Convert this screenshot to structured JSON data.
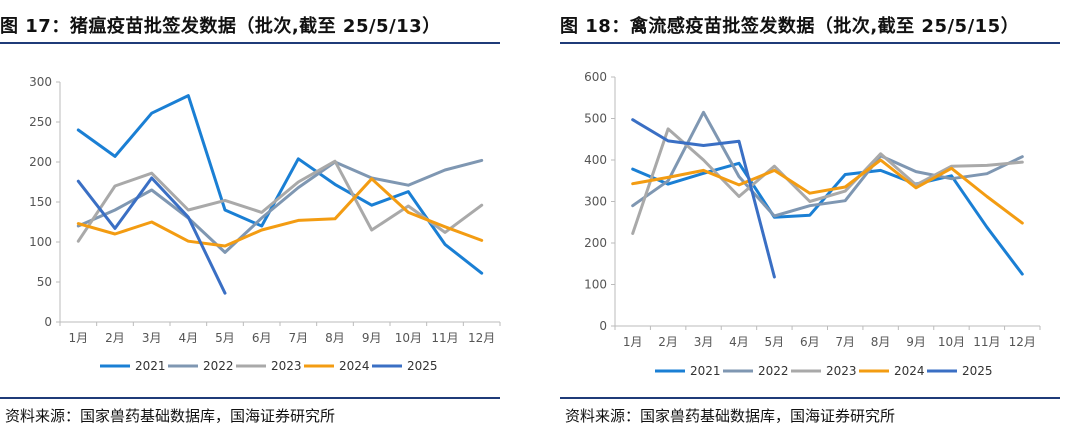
{
  "charts": [
    {
      "title": "图 17：猪瘟疫苗批签发数据（批次,截至 25/5/13）",
      "source": "资料来源：国家兽药基础数据库，国海证券研究所"
    },
    {
      "title": "图 18：禽流感疫苗批签发数据（批次,截至 25/5/15）",
      "source": "资料来源：国家兽药基础数据库，国海证券研究所"
    }
  ],
  "chart_data": [
    {
      "type": "line",
      "categories": [
        "1月",
        "2月",
        "3月",
        "4月",
        "5月",
        "6月",
        "7月",
        "8月",
        "9月",
        "10月",
        "11月",
        "12月"
      ],
      "ylim": [
        0,
        300
      ],
      "yticks": [
        0,
        50,
        100,
        150,
        200,
        250,
        300
      ],
      "grid": false,
      "legend_position": "bottom",
      "series": [
        {
          "name": "2021",
          "color": "#1a7fd4",
          "values": [
            240,
            207,
            261,
            283,
            140,
            120,
            204,
            172,
            146,
            163,
            97,
            61
          ]
        },
        {
          "name": "2022",
          "color": "#7f97b2",
          "values": [
            120,
            140,
            165,
            130,
            87,
            130,
            168,
            200,
            180,
            171,
            190,
            202
          ]
        },
        {
          "name": "2023",
          "color": "#a9a9a9",
          "values": [
            101,
            170,
            186,
            140,
            152,
            137,
            175,
            201,
            115,
            145,
            112,
            146
          ]
        },
        {
          "name": "2024",
          "color": "#f39c12",
          "values": [
            123,
            110,
            125,
            101,
            95,
            115,
            127,
            129,
            179,
            137,
            119,
            102
          ]
        },
        {
          "name": "2025",
          "color": "#3a6fc4",
          "values": [
            176,
            117,
            180,
            131,
            36,
            null,
            null,
            null,
            null,
            null,
            null,
            null
          ]
        }
      ]
    },
    {
      "type": "line",
      "categories": [
        "1月",
        "2月",
        "3月",
        "4月",
        "5月",
        "6月",
        "7月",
        "8月",
        "9月",
        "10月",
        "11月",
        "12月"
      ],
      "ylim": [
        0,
        600
      ],
      "yticks": [
        0,
        100,
        200,
        300,
        400,
        500,
        600
      ],
      "grid": false,
      "legend_position": "bottom",
      "series": [
        {
          "name": "2021",
          "color": "#1a7fd4",
          "values": [
            378,
            342,
            368,
            392,
            262,
            267,
            365,
            375,
            342,
            362,
            238,
            125
          ]
        },
        {
          "name": "2022",
          "color": "#7f97b2",
          "values": [
            290,
            350,
            515,
            360,
            265,
            290,
            302,
            410,
            372,
            355,
            367,
            408
          ]
        },
        {
          "name": "2023",
          "color": "#a9a9a9",
          "values": [
            223,
            475,
            400,
            312,
            385,
            300,
            325,
            415,
            340,
            385,
            387,
            395
          ]
        },
        {
          "name": "2024",
          "color": "#f39c12",
          "values": [
            343,
            358,
            375,
            340,
            375,
            320,
            335,
            400,
            333,
            380,
            312,
            248
          ]
        },
        {
          "name": "2025",
          "color": "#3a6fc4",
          "values": [
            497,
            446,
            435,
            445,
            118,
            null,
            null,
            null,
            null,
            null,
            null,
            null
          ]
        }
      ]
    }
  ]
}
